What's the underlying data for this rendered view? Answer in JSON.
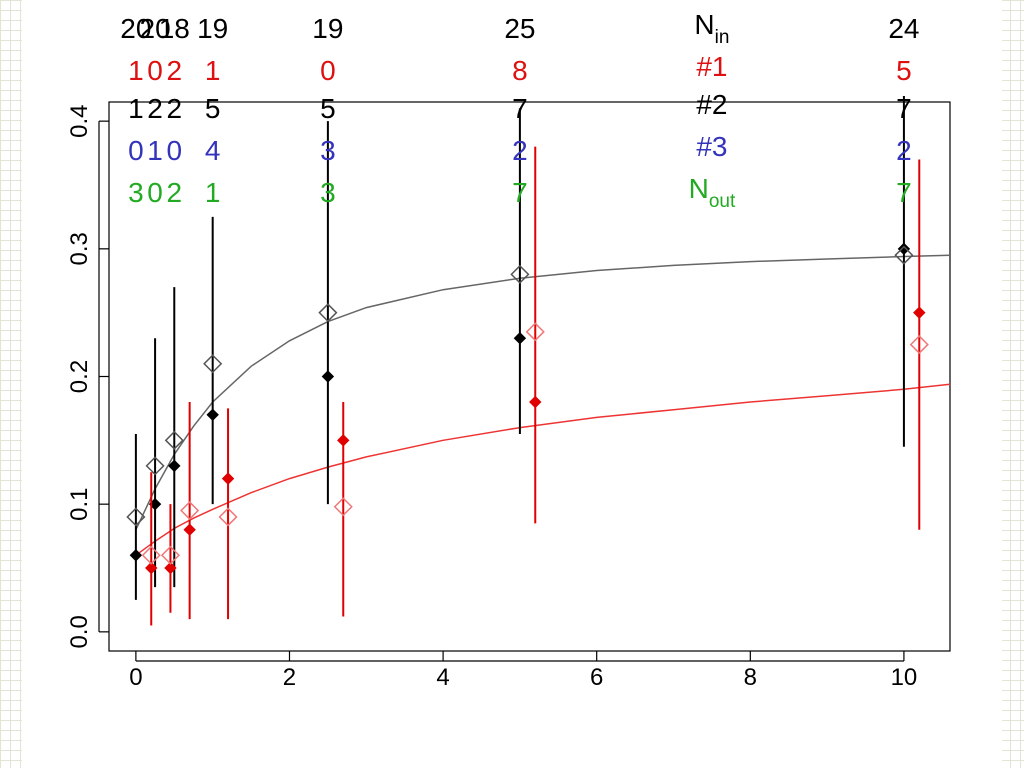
{
  "chart_data": {
    "type": "scatter",
    "title": "",
    "xlabel": "",
    "ylabel": "",
    "xlim": [
      -0.35,
      10.6
    ],
    "ylim": [
      -0.015,
      0.415
    ],
    "x_ticks": [
      0,
      2,
      4,
      6,
      8,
      10
    ],
    "y_ticks": [
      0.0,
      0.1,
      0.2,
      0.3,
      0.4
    ],
    "x_tick_labels": [
      "0",
      "2",
      "4",
      "6",
      "8",
      "10"
    ],
    "y_tick_labels": [
      "0.0",
      "0.1",
      "0.2",
      "0.3",
      "0.4"
    ],
    "grid": false,
    "series": [
      {
        "color": "#000000",
        "marker": "filled-diamond",
        "x": [
          0,
          0.25,
          0.5,
          1,
          2.5,
          5,
          10
        ],
        "y": [
          0.06,
          0.1,
          0.13,
          0.17,
          0.2,
          0.23,
          0.3
        ],
        "error_low": [
          0.025,
          0.035,
          0.035,
          0.1,
          0.1,
          0.155,
          0.145
        ],
        "error_high": [
          0.155,
          0.23,
          0.27,
          0.325,
          0.4,
          0.41,
          0.42
        ]
      },
      {
        "color": "#555555",
        "marker": "open-diamond",
        "x": [
          0,
          0.25,
          0.5,
          1,
          2.5,
          5,
          10
        ],
        "y": [
          0.09,
          0.13,
          0.15,
          0.21,
          0.25,
          0.28,
          0.295
        ]
      },
      {
        "color": "#e00000",
        "marker": "filled-diamond",
        "x": [
          0.2,
          0.45,
          0.7,
          1.2,
          2.7,
          5.2,
          10.2
        ],
        "y": [
          0.05,
          0.05,
          0.08,
          0.12,
          0.15,
          0.18,
          0.25
        ],
        "error_low": [
          0.005,
          0.015,
          0.01,
          0.01,
          0.012,
          0.085,
          0.08
        ],
        "error_high": [
          0.125,
          0.1,
          0.18,
          0.175,
          0.18,
          0.38,
          0.37
        ]
      },
      {
        "color": "#f07878",
        "marker": "open-diamond",
        "x": [
          0.2,
          0.45,
          0.7,
          1.2,
          2.7,
          5.2,
          10.2
        ],
        "y": [
          0.06,
          0.06,
          0.095,
          0.09,
          0.098,
          0.235,
          0.225
        ]
      }
    ],
    "curves": [
      {
        "color": "#666666",
        "x": [
          0,
          0.25,
          0.5,
          0.75,
          1,
          1.5,
          2,
          2.5,
          3,
          4,
          5,
          6,
          7,
          8,
          9,
          10,
          10.6
        ],
        "y": [
          0.08,
          0.112,
          0.139,
          0.161,
          0.18,
          0.208,
          0.228,
          0.243,
          0.254,
          0.268,
          0.277,
          0.283,
          0.287,
          0.29,
          0.292,
          0.294,
          0.295
        ]
      },
      {
        "color": "#ee3333",
        "x": [
          0,
          0.25,
          0.5,
          0.75,
          1,
          1.5,
          2,
          2.5,
          3,
          4,
          5,
          6,
          7,
          8,
          9,
          10,
          10.6
        ],
        "y": [
          0.06,
          0.071,
          0.081,
          0.089,
          0.096,
          0.109,
          0.12,
          0.129,
          0.137,
          0.15,
          0.16,
          0.168,
          0.174,
          0.18,
          0.185,
          0.19,
          0.194
        ]
      }
    ]
  },
  "count_table": {
    "columns": [
      {
        "x": 0,
        "values": [
          "20",
          "1",
          "1",
          "0",
          "3"
        ]
      },
      {
        "x": 0.25,
        "values": [
          "20",
          "0",
          "2",
          "1",
          "0"
        ]
      },
      {
        "x": 0.5,
        "values": [
          "18",
          "2",
          "2",
          "0",
          "2"
        ]
      },
      {
        "x": 1,
        "values": [
          "19",
          "1",
          "5",
          "4",
          "1"
        ]
      },
      {
        "x": 2.5,
        "values": [
          "19",
          "0",
          "5",
          "3",
          "3"
        ]
      },
      {
        "x": 5,
        "values": [
          "25",
          "8",
          "7",
          "2",
          "7"
        ]
      },
      {
        "x": 10,
        "values": [
          "24",
          "5",
          "7",
          "2",
          "7"
        ]
      }
    ],
    "row_labels": [
      {
        "main": "N",
        "sub": "in"
      },
      {
        "main": "#1",
        "sub": ""
      },
      {
        "main": "#2",
        "sub": ""
      },
      {
        "main": "#3",
        "sub": ""
      },
      {
        "main": "N",
        "sub": "out"
      }
    ],
    "row_colors": [
      "#000000",
      "#dd1111",
      "#000000",
      "#3333bb",
      "#22aa22"
    ]
  }
}
